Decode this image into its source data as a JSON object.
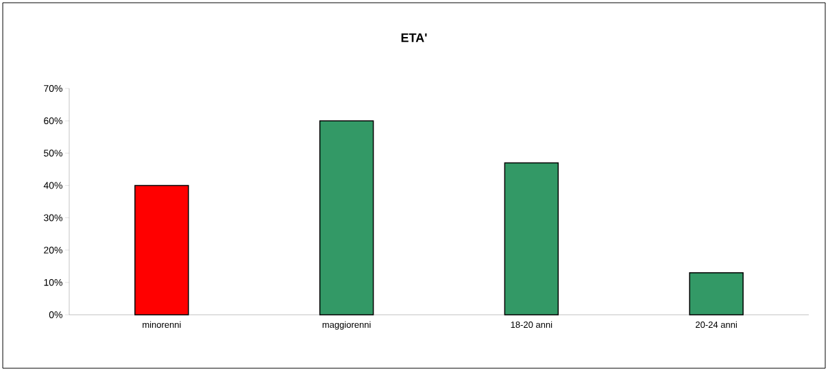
{
  "chart_data": {
    "type": "bar",
    "title": "ETA'",
    "categories": [
      "minorenni",
      "maggiorenni",
      "18-20 anni",
      "20-24 anni"
    ],
    "values": [
      40,
      60,
      47,
      13
    ],
    "colors": [
      "#ff0000",
      "#339966",
      "#339966",
      "#339966"
    ],
    "ylim": [
      0,
      70
    ],
    "yticks": [
      {
        "value": 0,
        "label": "0%"
      },
      {
        "value": 10,
        "label": "10%"
      },
      {
        "value": 20,
        "label": "20%"
      },
      {
        "value": 30,
        "label": "30%"
      },
      {
        "value": 40,
        "label": "40%"
      },
      {
        "value": 50,
        "label": "50%"
      },
      {
        "value": 60,
        "label": "60%"
      },
      {
        "value": 70,
        "label": "70%"
      }
    ],
    "grid": false
  }
}
